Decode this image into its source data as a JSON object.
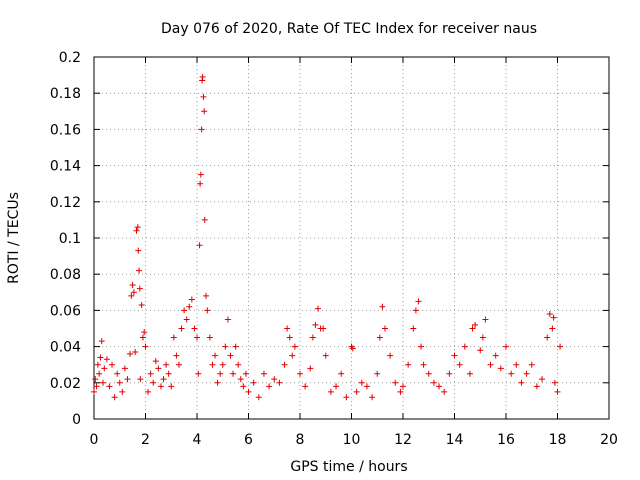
{
  "chart_data": {
    "type": "scatter",
    "title": "Day 076 of 2020, Rate Of TEC Index for receiver naus",
    "xlabel": "GPS time / hours",
    "ylabel": "ROTI / TECUs",
    "xlim": [
      0,
      20
    ],
    "ylim": [
      0,
      0.2
    ],
    "xticks": [
      0,
      2,
      4,
      6,
      8,
      10,
      12,
      14,
      16,
      18,
      20
    ],
    "yticks": [
      0,
      0.02,
      0.04,
      0.06,
      0.08,
      0.1,
      0.12,
      0.14,
      0.16,
      0.18,
      0.2
    ],
    "ytick_labels": [
      "0",
      "0.02",
      "0.04",
      "0.06",
      "0.08",
      "0.1",
      "0.12",
      "0.14",
      "0.16",
      "0.18",
      "0.2"
    ],
    "xtick_labels": [
      "0",
      "2",
      "4",
      "6",
      "8",
      "10",
      "12",
      "14",
      "16",
      "18",
      "20"
    ],
    "grid": true,
    "marker": "+",
    "color": "#e00000",
    "series": [
      {
        "name": "ROTI",
        "x": [
          0.0,
          0.05,
          0.1,
          0.15,
          0.2,
          0.25,
          0.3,
          0.35,
          0.4,
          0.5,
          0.6,
          0.7,
          0.8,
          0.9,
          1.0,
          1.1,
          1.2,
          1.3,
          1.4,
          1.45,
          1.5,
          1.55,
          1.6,
          1.65,
          1.7,
          1.72,
          1.75,
          1.78,
          1.8,
          1.85,
          1.9,
          1.95,
          2.0,
          2.1,
          2.2,
          2.3,
          2.4,
          2.5,
          2.6,
          2.7,
          2.8,
          2.9,
          3.0,
          3.1,
          3.2,
          3.3,
          3.4,
          3.5,
          3.6,
          3.7,
          3.8,
          3.9,
          4.0,
          4.05,
          4.1,
          4.12,
          4.15,
          4.18,
          4.2,
          4.22,
          4.25,
          4.28,
          4.3,
          4.35,
          4.4,
          4.5,
          4.6,
          4.7,
          4.8,
          4.9,
          5.0,
          5.1,
          5.2,
          5.3,
          5.4,
          5.5,
          5.6,
          5.7,
          5.8,
          5.9,
          6.0,
          6.2,
          6.4,
          6.6,
          6.8,
          7.0,
          7.2,
          7.4,
          7.5,
          7.6,
          7.7,
          7.8,
          8.0,
          8.2,
          8.4,
          8.5,
          8.6,
          8.7,
          8.8,
          8.9,
          9.0,
          9.2,
          9.4,
          9.6,
          9.8,
          10.0,
          10.05,
          10.2,
          10.4,
          10.6,
          10.8,
          11.0,
          11.1,
          11.2,
          11.3,
          11.5,
          11.7,
          11.9,
          12.0,
          12.2,
          12.4,
          12.5,
          12.6,
          12.7,
          12.8,
          13.0,
          13.2,
          13.4,
          13.6,
          13.8,
          14.0,
          14.2,
          14.4,
          14.6,
          14.7,
          14.8,
          15.0,
          15.1,
          15.2,
          15.4,
          15.6,
          15.8,
          16.0,
          16.2,
          16.4,
          16.6,
          16.8,
          17.0,
          17.2,
          17.4,
          17.6,
          17.7,
          17.8,
          17.85,
          17.9,
          18.0,
          18.1
        ],
        "y": [
          0.015,
          0.022,
          0.018,
          0.03,
          0.025,
          0.034,
          0.043,
          0.02,
          0.028,
          0.033,
          0.018,
          0.03,
          0.012,
          0.025,
          0.02,
          0.015,
          0.028,
          0.022,
          0.036,
          0.068,
          0.074,
          0.07,
          0.037,
          0.104,
          0.106,
          0.093,
          0.082,
          0.072,
          0.022,
          0.063,
          0.045,
          0.048,
          0.04,
          0.015,
          0.025,
          0.02,
          0.032,
          0.028,
          0.018,
          0.022,
          0.03,
          0.025,
          0.018,
          0.045,
          0.035,
          0.03,
          0.05,
          0.06,
          0.055,
          0.062,
          0.066,
          0.05,
          0.045,
          0.025,
          0.096,
          0.13,
          0.135,
          0.16,
          0.187,
          0.189,
          0.178,
          0.17,
          0.11,
          0.068,
          0.06,
          0.045,
          0.03,
          0.035,
          0.02,
          0.025,
          0.03,
          0.04,
          0.055,
          0.035,
          0.025,
          0.04,
          0.03,
          0.022,
          0.018,
          0.025,
          0.015,
          0.02,
          0.012,
          0.025,
          0.018,
          0.022,
          0.02,
          0.03,
          0.05,
          0.045,
          0.035,
          0.04,
          0.025,
          0.018,
          0.028,
          0.045,
          0.052,
          0.061,
          0.05,
          0.05,
          0.035,
          0.015,
          0.018,
          0.025,
          0.012,
          0.04,
          0.039,
          0.015,
          0.02,
          0.018,
          0.012,
          0.025,
          0.045,
          0.062,
          0.05,
          0.035,
          0.02,
          0.015,
          0.018,
          0.03,
          0.05,
          0.06,
          0.065,
          0.04,
          0.03,
          0.025,
          0.02,
          0.018,
          0.015,
          0.025,
          0.035,
          0.03,
          0.04,
          0.025,
          0.05,
          0.052,
          0.038,
          0.045,
          0.055,
          0.03,
          0.035,
          0.028,
          0.04,
          0.025,
          0.03,
          0.02,
          0.025,
          0.03,
          0.018,
          0.022,
          0.045,
          0.058,
          0.05,
          0.056,
          0.02,
          0.015,
          0.04
        ]
      }
    ]
  }
}
